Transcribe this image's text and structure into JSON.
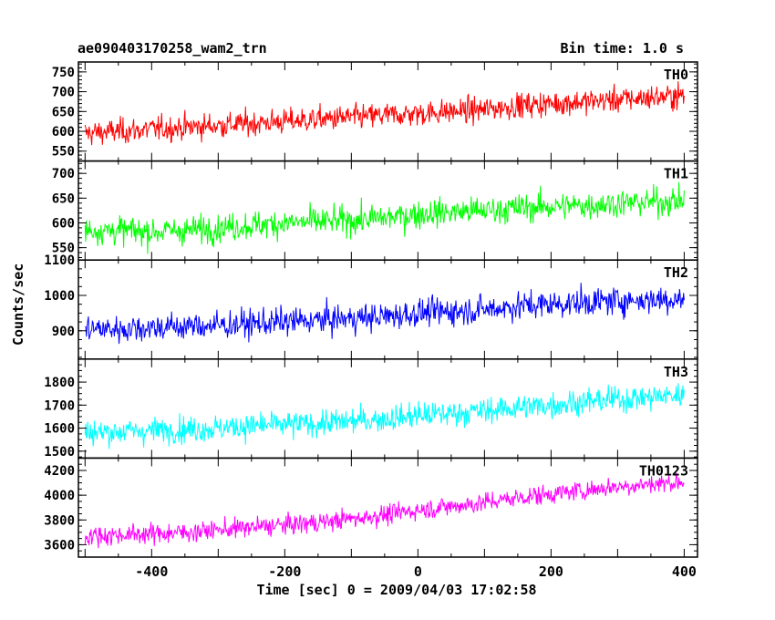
{
  "title_left": "ae090403170258_wam2_trn",
  "title_right": "Bin time: 1.0 s",
  "chart_data": {
    "type": "line",
    "xlabel": "Time [sec] 0 = 2009/04/03 17:02:58",
    "ylabel": "Counts/sec",
    "xlim": [
      -510,
      420
    ],
    "x_ticks": [
      -400,
      -200,
      0,
      200,
      400
    ],
    "x_range": [
      -500,
      400
    ],
    "grid": false,
    "legend": "none",
    "series": [
      {
        "name": "TH0",
        "color": "#ff0000",
        "ylim": [
          525,
          775
        ],
        "yticks": [
          550,
          600,
          650,
          700,
          750
        ],
        "x": [
          -500,
          -450,
          -400,
          -350,
          -300,
          -250,
          -200,
          -150,
          -100,
          -50,
          0,
          50,
          100,
          150,
          200,
          250,
          300,
          350,
          400
        ],
        "y": [
          595,
          600,
          605,
          610,
          615,
          620,
          625,
          630,
          635,
          640,
          645,
          650,
          655,
          665,
          670,
          675,
          680,
          685,
          690
        ],
        "noise": 28
      },
      {
        "name": "TH1",
        "color": "#00ff00",
        "ylim": [
          525,
          725
        ],
        "yticks": [
          550,
          600,
          650,
          700
        ],
        "x": [
          -500,
          -450,
          -400,
          -350,
          -300,
          -250,
          -200,
          -150,
          -100,
          -50,
          0,
          50,
          100,
          150,
          200,
          250,
          300,
          350,
          400
        ],
        "y": [
          585,
          585,
          582,
          585,
          590,
          595,
          600,
          602,
          605,
          610,
          618,
          622,
          625,
          630,
          633,
          635,
          640,
          642,
          645
        ],
        "noise": 25
      },
      {
        "name": "TH2",
        "color": "#0000ff",
        "ylim": [
          820,
          1100
        ],
        "yticks": [
          900,
          1000,
          1100
        ],
        "x": [
          -500,
          -450,
          -400,
          -350,
          -300,
          -250,
          -200,
          -150,
          -100,
          -50,
          0,
          50,
          100,
          150,
          200,
          250,
          300,
          350,
          400
        ],
        "y": [
          905,
          905,
          910,
          912,
          915,
          920,
          925,
          930,
          935,
          940,
          950,
          955,
          960,
          970,
          975,
          980,
          985,
          988,
          990
        ],
        "noise": 35
      },
      {
        "name": "TH3",
        "color": "#00ffff",
        "ylim": [
          1470,
          1900
        ],
        "yticks": [
          1500,
          1600,
          1700,
          1800
        ],
        "x": [
          -500,
          -450,
          -400,
          -350,
          -300,
          -250,
          -200,
          -150,
          -100,
          -50,
          0,
          50,
          100,
          150,
          200,
          250,
          300,
          350,
          400
        ],
        "y": [
          1580,
          1585,
          1590,
          1595,
          1600,
          1610,
          1615,
          1620,
          1630,
          1640,
          1655,
          1665,
          1675,
          1690,
          1700,
          1715,
          1725,
          1735,
          1745
        ],
        "noise": 50
      },
      {
        "name": "TH0123",
        "color": "#ff00ff",
        "ylim": [
          3500,
          4300
        ],
        "yticks": [
          3600,
          3800,
          4000,
          4200
        ],
        "x": [
          -500,
          -450,
          -400,
          -350,
          -300,
          -250,
          -200,
          -150,
          -100,
          -50,
          0,
          50,
          100,
          150,
          200,
          250,
          300,
          350,
          400
        ],
        "y": [
          3670,
          3680,
          3690,
          3700,
          3720,
          3740,
          3760,
          3780,
          3810,
          3840,
          3880,
          3910,
          3940,
          3980,
          4010,
          4040,
          4070,
          4090,
          4110
        ],
        "noise": 70
      }
    ]
  }
}
